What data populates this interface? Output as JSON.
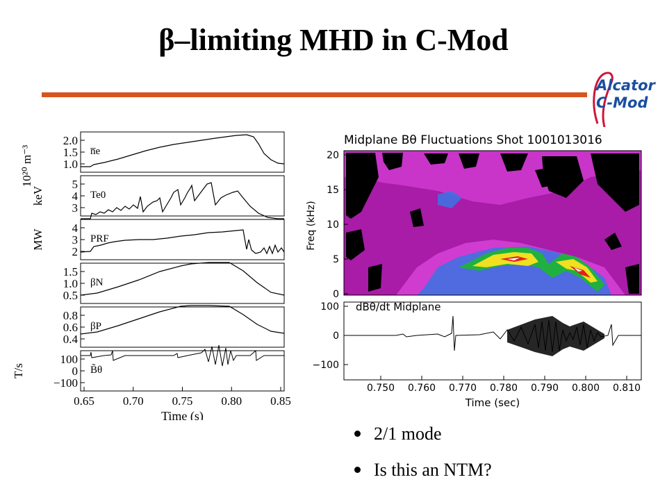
{
  "title": "β–limiting MHD in C-Mod",
  "logo": {
    "line1": "Alcator",
    "line2": "C-Mod",
    "brand_color": "#1a4fa0",
    "curve_color": "#d0143a"
  },
  "colors": {
    "rule": "#d8541f"
  },
  "left_panel": {
    "panels": [
      {
        "name": "ne",
        "ylabel": "10²⁰ m⁻³",
        "ticks": [
          "2.0",
          "1.5",
          "1.0"
        ],
        "tag": "n̅e"
      },
      {
        "name": "Te0",
        "ylabel": "keV",
        "ticks": [
          "5",
          "4",
          "3"
        ],
        "tag": "Te0"
      },
      {
        "name": "PRF",
        "ylabel": "MW",
        "ticks": [
          "4",
          "3",
          "2"
        ],
        "tag": "PRF"
      },
      {
        "name": "betaN",
        "ylabel": "",
        "ticks": [
          "1.5",
          "1.0",
          "0.5"
        ],
        "tag": "βN"
      },
      {
        "name": "betaP",
        "ylabel": "",
        "ticks": [
          "0.8",
          "0.6",
          "0.4"
        ],
        "tag": "βP"
      },
      {
        "name": "Btheta",
        "ylabel": "T/s",
        "ticks": [
          "100",
          "0",
          "−100"
        ],
        "tag": "B̃θ"
      }
    ],
    "xticks": [
      "0.65",
      "0.70",
      "0.75",
      "0.80",
      "0.85"
    ],
    "xlabel": "Time (s)"
  },
  "right_panel": {
    "title": "Midplane Bθ Fluctuations Shot 1001013016",
    "freq_label": "Freq (kHz)",
    "freq_ticks": [
      "20",
      "15",
      "10",
      "5",
      "0"
    ],
    "lower_label": "dBθ/dt Midplane",
    "lower_ticks": [
      "100",
      "0",
      "−100"
    ],
    "xticks": [
      "0.750",
      "0.760",
      "0.770",
      "0.780",
      "0.790",
      "0.800",
      "0.810"
    ],
    "xlabel": "Time (sec)",
    "spectro_colors": {
      "background": "#a81ca8",
      "low": "#d03cd0",
      "mid": "#4070e0",
      "band": "#20b040",
      "high": "#f0e020",
      "peak": "#e02020",
      "max": "#ffffff",
      "void": "#000000"
    }
  },
  "bullets": [
    "2/1 mode",
    "Is this an NTM?"
  ]
}
